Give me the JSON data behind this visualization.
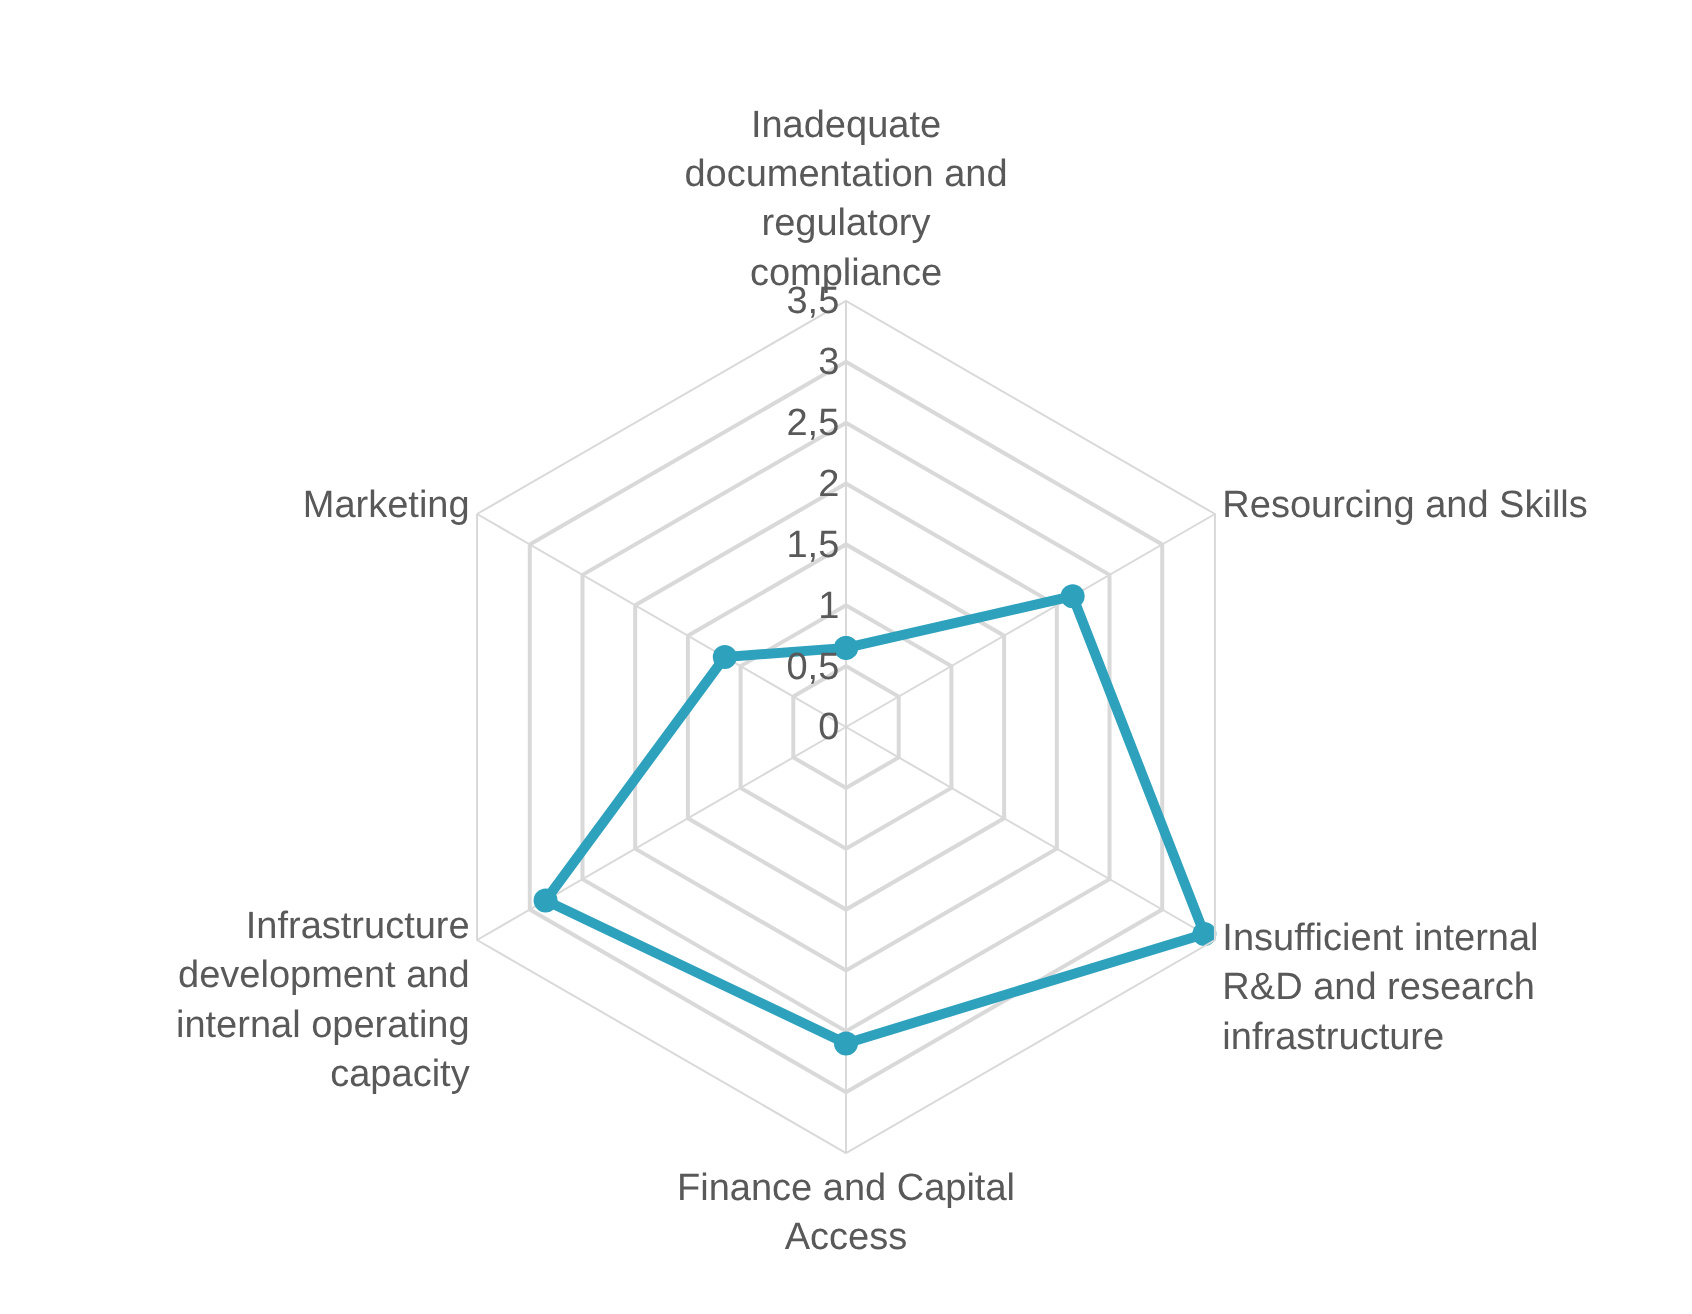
{
  "chart_data": {
    "type": "radar",
    "categories": [
      "Inadequate documentation and regulatory compliance",
      "Resourcing and Skills",
      "Insufficient internal R&D and research infrastructure",
      "Finance and Capital Access",
      "Infrastructure development and internal operating capacity",
      "Marketing"
    ],
    "series": [
      {
        "color": "#2ea2bd",
        "values": [
          0.65,
          2.15,
          3.4,
          2.6,
          2.85,
          1.15
        ]
      }
    ],
    "ylim": [
      0,
      3.5
    ],
    "yticks": [
      0,
      {
        "value": 0.5,
        "label": "0,5"
      },
      1,
      {
        "value": 1.5,
        "label": "1,5"
      },
      2,
      {
        "value": 2.5,
        "label": "2,5"
      },
      3,
      {
        "value": 3.5,
        "label": "3,5"
      }
    ],
    "grid": true,
    "marker": "circle",
    "line_style": "solid"
  }
}
